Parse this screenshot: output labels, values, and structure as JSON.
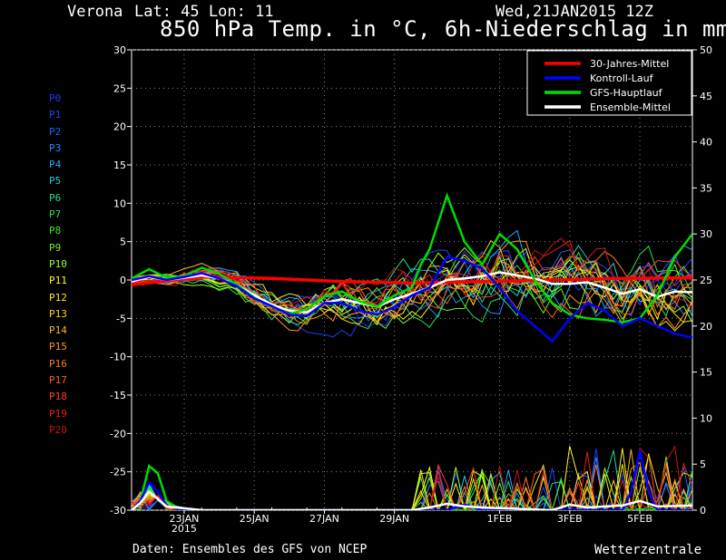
{
  "header": {
    "location": "Verona",
    "coords": "Lat: 45 Lon: 11",
    "datetime": "Wed,21JAN2015 12Z",
    "title": "850 hPa Temp. in °C, 6h-Niederschlag in mm"
  },
  "footer": {
    "source": "Daten: Ensembles des GFS von NCEP",
    "brand": "Wetterzentrale"
  },
  "members": [
    {
      "label": "P0",
      "color": "#1e3cff"
    },
    {
      "label": "P1",
      "color": "#1e46ff"
    },
    {
      "label": "P2",
      "color": "#1e64ff"
    },
    {
      "label": "P3",
      "color": "#1e90ff"
    },
    {
      "label": "P4",
      "color": "#1eaaff"
    },
    {
      "label": "P5",
      "color": "#1ed2c8"
    },
    {
      "label": "P6",
      "color": "#1ee08c"
    },
    {
      "label": "P7",
      "color": "#2ee050"
    },
    {
      "label": "P8",
      "color": "#46e628"
    },
    {
      "label": "P9",
      "color": "#78f01e"
    },
    {
      "label": "P10",
      "color": "#a0ff1e"
    },
    {
      "label": "P11",
      "color": "#ffff1e"
    },
    {
      "label": "P12",
      "color": "#ffe61e"
    },
    {
      "label": "P13",
      "color": "#ffd21e"
    },
    {
      "label": "P14",
      "color": "#ffb41e"
    },
    {
      "label": "P15",
      "color": "#ff961e"
    },
    {
      "label": "P16",
      "color": "#ff7828"
    },
    {
      "label": "P17",
      "color": "#ff5a28"
    },
    {
      "label": "P18",
      "color": "#ff3c28"
    },
    {
      "label": "P19",
      "color": "#e61e1e"
    },
    {
      "label": "P20",
      "color": "#c81414"
    }
  ],
  "chart_data": {
    "type": "line",
    "title": "850 hPa Temp. in °C, 6h-Niederschlag in mm",
    "x_unit": "days since 2015-01-21 12Z",
    "xlim": [
      0,
      16
    ],
    "ylim_left": [
      -30,
      30
    ],
    "ylim_right": [
      0,
      50
    ],
    "ylabel_left": "°C",
    "ylabel_right": "mm",
    "x_ticks": [
      {
        "x": 1.5,
        "label": "23JAN",
        "label2": "2015"
      },
      {
        "x": 3.5,
        "label": "25JAN"
      },
      {
        "x": 5.5,
        "label": "27JAN"
      },
      {
        "x": 7.5,
        "label": "29JAN"
      },
      {
        "x": 10.5,
        "label": "1FEB"
      },
      {
        "x": 12.5,
        "label": "3FEB"
      },
      {
        "x": 14.5,
        "label": "5FEB"
      }
    ],
    "y_ticks_left": [
      30,
      25,
      20,
      15,
      10,
      5,
      0,
      -5,
      -10,
      -15,
      -20,
      -25,
      -30
    ],
    "y_ticks_right": [
      50,
      45,
      40,
      35,
      30,
      25,
      20,
      15,
      10,
      5,
      0
    ],
    "legend": [
      {
        "name": "30-Jahres-Mittel",
        "color": "#ff0000"
      },
      {
        "name": "Kontroll-Lauf",
        "color": "#0000ff"
      },
      {
        "name": "GFS-Hauptlauf",
        "color": "#00dd00"
      },
      {
        "name": "Ensemble-Mittel",
        "color": "#ffffff"
      }
    ],
    "temperature_series": [
      {
        "name": "30-Jahres-Mittel",
        "color": "#ff0000",
        "width": 3.5,
        "x": [
          0,
          2,
          4,
          6,
          8,
          10,
          12,
          14,
          16
        ],
        "y": [
          -0.6,
          0.4,
          0.2,
          -0.2,
          -0.4,
          -0.2,
          0,
          0.2,
          0.3
        ]
      },
      {
        "name": "Ensemble-Mittel",
        "color": "#ffffff",
        "width": 2.5,
        "x": [
          0,
          0.5,
          1,
          1.5,
          2,
          2.5,
          3,
          3.5,
          4,
          4.5,
          5,
          5.5,
          6,
          6.5,
          7,
          7.5,
          8,
          8.5,
          9,
          9.5,
          10,
          10.5,
          11,
          11.5,
          12,
          12.5,
          13,
          13.5,
          14,
          14.5,
          15,
          15.5,
          16
        ],
        "y": [
          -0.2,
          0.4,
          0,
          0.3,
          0.6,
          0.2,
          -0.6,
          -2,
          -3.2,
          -4,
          -4.2,
          -3,
          -2.5,
          -3,
          -3.5,
          -2.5,
          -1.8,
          -1,
          0,
          0.2,
          0.5,
          1,
          0.6,
          0.2,
          -0.5,
          -0.5,
          -0.3,
          -1,
          -1.8,
          -1.2,
          -2.2,
          -1.5,
          -1.6
        ]
      },
      {
        "name": "GFS-Hauptlauf",
        "color": "#00dd00",
        "width": 2.5,
        "x": [
          0,
          0.5,
          1,
          1.5,
          2,
          2.5,
          3,
          3.5,
          4,
          4.5,
          5,
          5.5,
          6,
          6.5,
          7,
          7.5,
          8,
          8.25,
          8.5,
          9,
          9.5,
          10,
          10.5,
          11,
          11.5,
          12,
          12.5,
          13,
          13.5,
          14,
          14.5,
          15,
          15.5,
          16
        ],
        "y": [
          0.2,
          1.4,
          0.3,
          0.5,
          1.6,
          0.8,
          -0.6,
          -2.3,
          -3.5,
          -4.4,
          -3.8,
          -2.1,
          -1.5,
          -2.8,
          -3.5,
          -2,
          -1,
          2,
          4,
          11,
          5,
          2,
          6,
          4,
          0,
          -3,
          -4.5,
          -5,
          -5.2,
          -5.5,
          -5,
          -2,
          3,
          6
        ]
      },
      {
        "name": "Kontroll-Lauf",
        "color": "#0000ff",
        "width": 2.5,
        "x": [
          0,
          0.5,
          1,
          1.5,
          2,
          2.5,
          3,
          3.5,
          4,
          4.5,
          5,
          5.5,
          6,
          6.5,
          7,
          7.5,
          8,
          8.5,
          9,
          9.5,
          10,
          10.5,
          11,
          11.5,
          12,
          12.5,
          13,
          13.5,
          14,
          14.5,
          15,
          15.5,
          16
        ],
        "y": [
          0,
          0.5,
          0,
          0.4,
          0.9,
          0.2,
          -0.8,
          -2.4,
          -3.4,
          -4.5,
          -4.7,
          -3,
          -3,
          -4,
          -4.5,
          -3.5,
          -2,
          -1,
          3,
          2.5,
          1.5,
          -1,
          -4,
          -6,
          -8,
          -5,
          -3,
          -4,
          -6,
          -5,
          -6,
          -7,
          -7.5
        ]
      }
    ],
    "precipitation_series": [
      {
        "name": "GFS-Hauptlauf",
        "color": "#00dd00",
        "x": [
          0,
          0.25,
          0.5,
          0.75,
          1,
          1.25,
          1.5,
          2,
          3,
          9,
          16
        ],
        "y": [
          0,
          1,
          4.8,
          4,
          1,
          0.4,
          0.2,
          0,
          0,
          0,
          0
        ]
      },
      {
        "name": "Kontroll-Lauf",
        "color": "#0000ff",
        "x": [
          0,
          0.25,
          0.5,
          0.75,
          1,
          1.5,
          2,
          9,
          9.5,
          10,
          14,
          14.25,
          14.5,
          14.75,
          15,
          16
        ],
        "y": [
          0,
          1,
          3,
          2,
          0.5,
          0,
          0,
          0,
          0.6,
          0,
          0,
          2,
          6.5,
          2,
          0,
          0
        ]
      },
      {
        "name": "Ensemble-Mittel",
        "color": "#ffffff",
        "x": [
          0,
          0.25,
          0.5,
          0.75,
          1,
          2,
          8,
          8.5,
          9,
          9.5,
          10,
          12,
          12.5,
          13,
          14,
          14.5,
          15,
          16
        ],
        "y": [
          0,
          0.8,
          2,
          1.2,
          0.4,
          0,
          0,
          0.3,
          0.7,
          0.4,
          0.3,
          0,
          0.6,
          0.3,
          0.5,
          1,
          0.4,
          0.5
        ]
      }
    ]
  }
}
